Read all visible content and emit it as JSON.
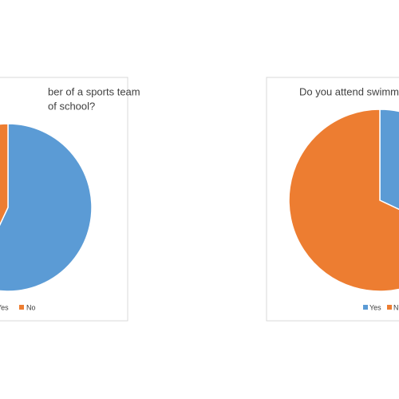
{
  "chart_data": [
    {
      "type": "pie",
      "title_lines": [
        "ber of a sports team",
        "of school?"
      ],
      "categories": [
        "Yes",
        "No"
      ],
      "values": [
        57,
        43
      ],
      "colors": [
        "#5b9bd5",
        "#ed7d31"
      ]
    },
    {
      "type": "pie",
      "title_lines": [
        "Do you attend swimm"
      ],
      "categories": [
        "Yes",
        "N"
      ],
      "values": [
        32,
        68
      ],
      "colors": [
        "#5b9bd5",
        "#ed7d31"
      ]
    }
  ]
}
